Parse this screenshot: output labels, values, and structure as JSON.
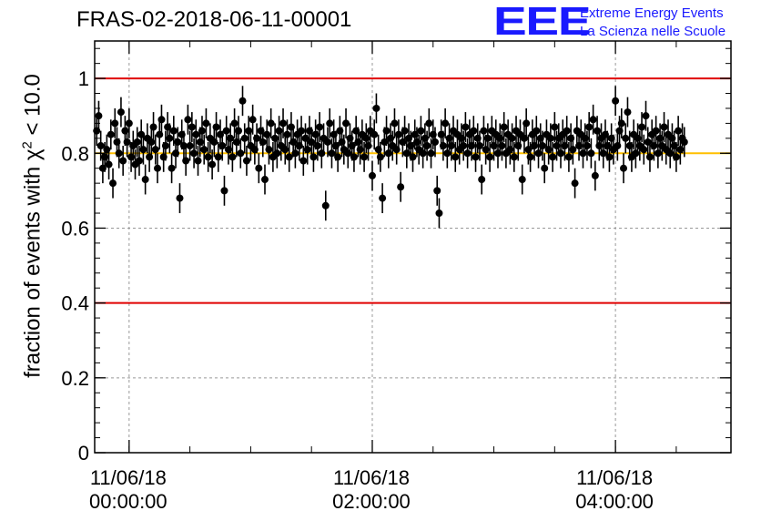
{
  "chart_data": {
    "type": "scatter",
    "title": "FRAS-02-2018-06-11-00001",
    "ylabel": "fraction of events with χ² < 10.0",
    "ylabel_parts": {
      "prefix": "fraction of events with ",
      "symbol": "χ",
      "superscript": "2",
      "suffix": " < 10.0"
    },
    "xlabel": "",
    "x_unit": "minutes after 11/06/18 00:00:00",
    "xlim": [
      -17,
      297
    ],
    "ylim": [
      0,
      1.1
    ],
    "y_ticks": [
      "0",
      "0.2",
      "0.4",
      "0.6",
      "0.8",
      "1"
    ],
    "y_tick_values": [
      0,
      0.2,
      0.4,
      0.6,
      0.8,
      1.0
    ],
    "x_ticks": [
      {
        "value": 0,
        "date": "11/06/18",
        "time": "00:00:00"
      },
      {
        "value": 120,
        "date": "11/06/18",
        "time": "02:00:00"
      },
      {
        "value": 240,
        "date": "11/06/18",
        "time": "04:00:00"
      }
    ],
    "x_minor_tick_step": 30,
    "grid": true,
    "reference_lines": [
      {
        "y": 1.0,
        "color": "#e00000"
      },
      {
        "y": 0.8,
        "color": "#ffbf00"
      },
      {
        "y": 0.4,
        "color": "#e00000"
      }
    ],
    "error_bar": 0.04,
    "x_start": -16,
    "x_step": 1,
    "values": [
      0.86,
      0.9,
      0.82,
      0.76,
      0.79,
      0.81,
      0.77,
      0.85,
      0.72,
      0.88,
      0.83,
      0.8,
      0.91,
      0.78,
      0.86,
      0.83,
      0.88,
      0.79,
      0.82,
      0.77,
      0.83,
      0.78,
      0.85,
      0.81,
      0.73,
      0.84,
      0.79,
      0.83,
      0.87,
      0.81,
      0.76,
      0.85,
      0.89,
      0.79,
      0.82,
      0.87,
      0.84,
      0.76,
      0.86,
      0.8,
      0.83,
      0.68,
      0.85,
      0.82,
      0.78,
      0.89,
      0.82,
      0.87,
      0.8,
      0.85,
      0.78,
      0.83,
      0.86,
      0.81,
      0.88,
      0.79,
      0.84,
      0.77,
      0.83,
      0.87,
      0.79,
      0.85,
      0.82,
      0.7,
      0.86,
      0.81,
      0.84,
      0.79,
      0.88,
      0.83,
      0.86,
      0.8,
      0.94,
      0.84,
      0.78,
      0.86,
      0.82,
      0.89,
      0.81,
      0.84,
      0.76,
      0.86,
      0.83,
      0.73,
      0.85,
      0.81,
      0.88,
      0.79,
      0.84,
      0.8,
      0.86,
      0.82,
      0.88,
      0.81,
      0.85,
      0.79,
      0.87,
      0.83,
      0.8,
      0.85,
      0.82,
      0.86,
      0.78,
      0.84,
      0.81,
      0.86,
      0.83,
      0.79,
      0.85,
      0.82,
      0.87,
      0.8,
      0.84,
      0.66,
      0.83,
      0.88,
      0.8,
      0.85,
      0.82,
      0.79,
      0.86,
      0.83,
      0.81,
      0.88,
      0.8,
      0.84,
      0.82,
      0.79,
      0.86,
      0.83,
      0.81,
      0.85,
      0.79,
      0.84,
      0.82,
      0.86,
      0.74,
      0.85,
      0.92,
      0.81,
      0.79,
      0.68,
      0.83,
      0.86,
      0.8,
      0.84,
      0.82,
      0.88,
      0.81,
      0.85,
      0.71,
      0.83,
      0.86,
      0.8,
      0.84,
      0.82,
      0.79,
      0.85,
      0.83,
      0.81,
      0.86,
      0.8,
      0.84,
      0.82,
      0.88,
      0.8,
      0.85,
      0.83,
      0.7,
      0.64,
      0.85,
      0.82,
      0.88,
      0.8,
      0.84,
      0.82,
      0.86,
      0.79,
      0.85,
      0.81,
      0.84,
      0.82,
      0.87,
      0.8,
      0.85,
      0.82,
      0.86,
      0.79,
      0.84,
      0.82,
      0.73,
      0.86,
      0.81,
      0.84,
      0.79,
      0.86,
      0.82,
      0.85,
      0.8,
      0.84,
      0.82,
      0.87,
      0.8,
      0.85,
      0.81,
      0.84,
      0.79,
      0.86,
      0.82,
      0.85,
      0.73,
      0.84,
      0.88,
      0.81,
      0.79,
      0.85,
      0.82,
      0.86,
      0.8,
      0.84,
      0.82,
      0.76,
      0.85,
      0.81,
      0.84,
      0.79,
      0.87,
      0.82,
      0.84,
      0.8,
      0.85,
      0.82,
      0.86,
      0.79,
      0.84,
      0.81,
      0.72,
      0.86,
      0.82,
      0.85,
      0.8,
      0.84,
      0.82,
      0.87,
      0.8,
      0.89,
      0.74,
      0.86,
      0.82,
      0.84,
      0.8,
      0.85,
      0.82,
      0.79,
      0.84,
      0.81,
      0.94,
      0.82,
      0.86,
      0.88,
      0.76,
      0.84,
      0.91,
      0.82,
      0.79,
      0.85,
      0.8,
      0.84,
      0.82,
      0.87,
      0.81,
      0.9,
      0.83,
      0.79,
      0.85,
      0.82,
      0.86,
      0.8,
      0.84,
      0.82,
      0.87,
      0.81,
      0.85,
      0.8,
      0.84,
      0.82,
      0.79,
      0.86,
      0.81,
      0.84,
      0.83
    ]
  },
  "logo": {
    "mark": "EEE",
    "line1": "Extreme Energy Events",
    "line2": "La Scienza nelle Scuole"
  }
}
